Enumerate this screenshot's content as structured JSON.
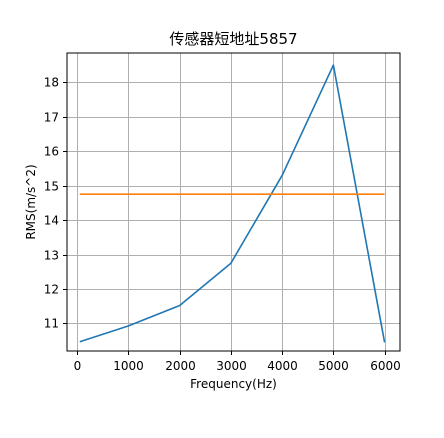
{
  "chart_data": {
    "type": "line",
    "title": "传感器短地址5857",
    "xlabel": "Frequency(Hz)",
    "ylabel": "RMS(m/s^2)",
    "xlim": [
      -200,
      6300
    ],
    "ylim": [
      10.2,
      18.85
    ],
    "xticks": [
      0,
      1000,
      2000,
      3000,
      4000,
      5000,
      6000
    ],
    "yticks": [
      11,
      12,
      13,
      14,
      15,
      16,
      17,
      18
    ],
    "grid": true,
    "series": [
      {
        "color": "#1f77b4",
        "x": [
          50,
          1000,
          2000,
          3000,
          4000,
          5000,
          6000
        ],
        "y": [
          10.47,
          10.93,
          11.52,
          12.75,
          15.3,
          18.5,
          10.45
        ]
      },
      {
        "color": "#ff7f0e",
        "x": [
          50,
          6000
        ],
        "y": [
          14.75,
          14.75
        ]
      }
    ]
  }
}
